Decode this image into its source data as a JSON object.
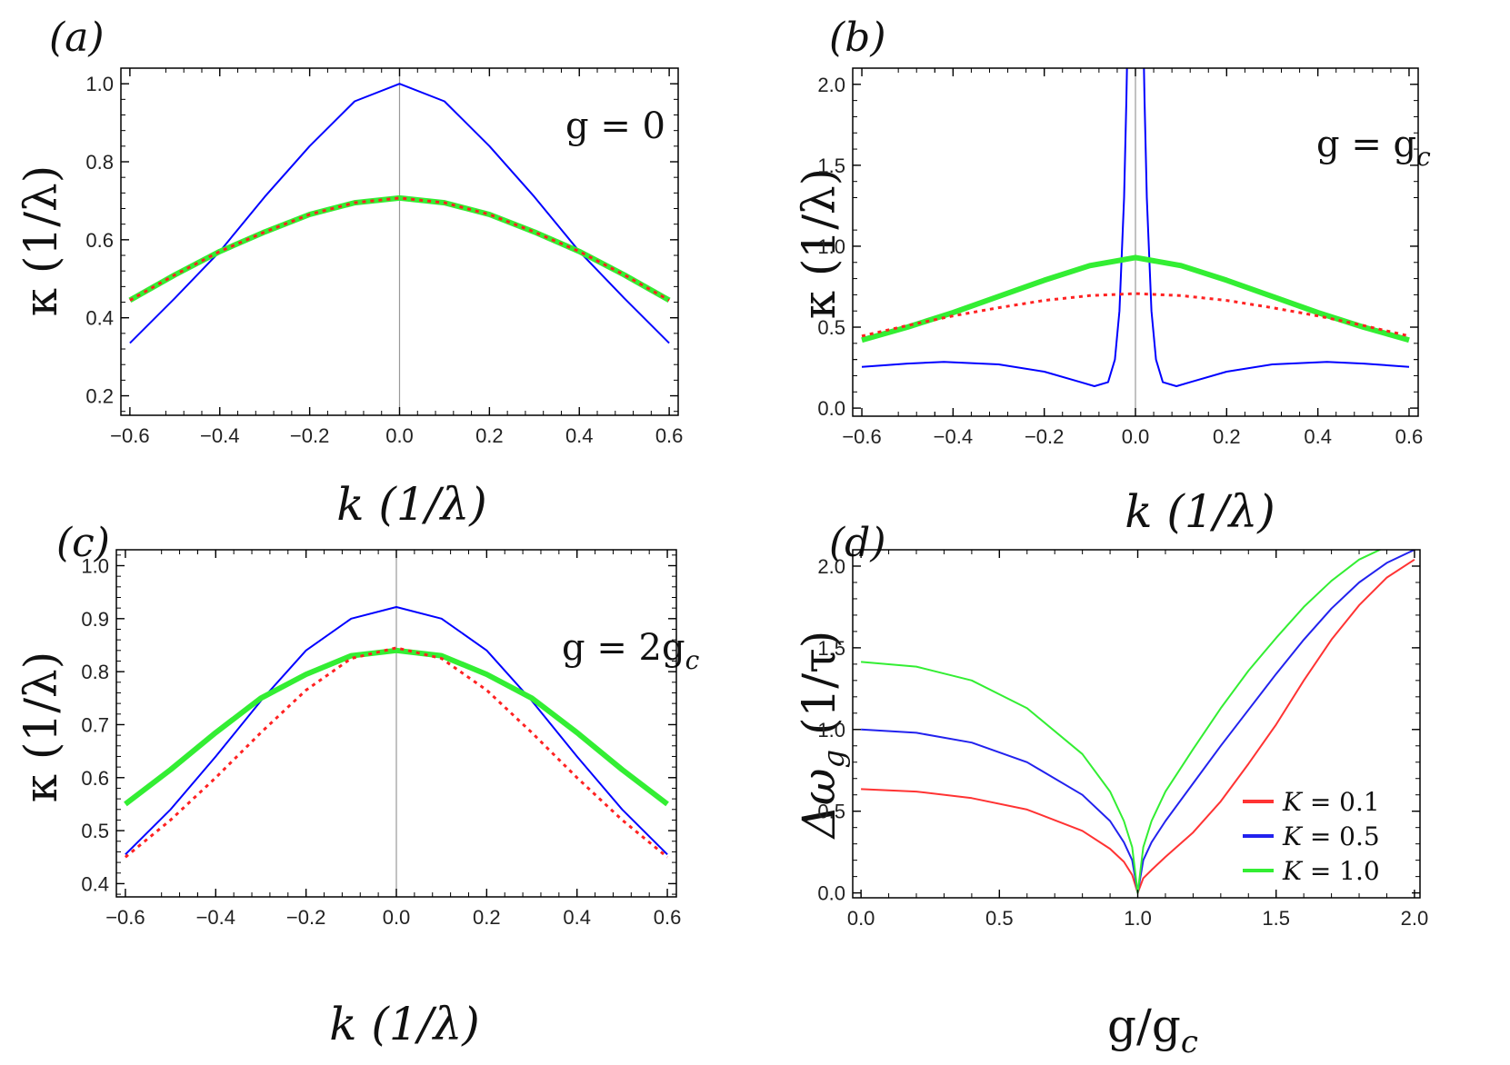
{
  "chart_data": [
    {
      "panel": "(a)",
      "type": "line",
      "annotation": "g = 0",
      "xlabel": "k (1/λ)",
      "ylabel": "κ (1/λ)",
      "xlim": [
        -0.62,
        0.62
      ],
      "ylim": [
        0.15,
        1.04
      ],
      "xticks": [
        -0.6,
        -0.4,
        -0.2,
        0.0,
        0.2,
        0.4,
        0.6
      ],
      "yticks": [
        0.2,
        0.4,
        0.6,
        0.8,
        1.0
      ],
      "xtick_labels": [
        "−0.6",
        "−0.4",
        "−0.2",
        "0.0",
        "0.2",
        "0.4",
        "0.6"
      ],
      "ytick_labels": [
        "0.2",
        "0.4",
        "0.6",
        "0.8",
        "1.0"
      ],
      "vline_x": 0,
      "series": [
        {
          "color": "#0000ff",
          "width": 2,
          "dash": "",
          "x": [
            -0.6,
            -0.5,
            -0.4,
            -0.3,
            -0.2,
            -0.1,
            0.0,
            0.1,
            0.2,
            0.3,
            0.4,
            0.5,
            0.6
          ],
          "y": [
            0.335,
            0.45,
            0.57,
            0.71,
            0.84,
            0.955,
            1.0,
            0.955,
            0.84,
            0.71,
            0.57,
            0.45,
            0.335
          ]
        },
        {
          "color": "#33ee33",
          "width": 6,
          "dash": "",
          "x": [
            -0.6,
            -0.5,
            -0.4,
            -0.3,
            -0.2,
            -0.1,
            0.0,
            0.1,
            0.2,
            0.3,
            0.4,
            0.5,
            0.6
          ],
          "y": [
            0.445,
            0.51,
            0.57,
            0.62,
            0.665,
            0.695,
            0.707,
            0.695,
            0.665,
            0.62,
            0.57,
            0.51,
            0.445
          ]
        },
        {
          "color": "#ff2222",
          "width": 3,
          "dash": "4,5",
          "x": [
            -0.6,
            -0.5,
            -0.4,
            -0.3,
            -0.2,
            -0.1,
            0.0,
            0.1,
            0.2,
            0.3,
            0.4,
            0.5,
            0.6
          ],
          "y": [
            0.445,
            0.51,
            0.57,
            0.62,
            0.665,
            0.695,
            0.707,
            0.695,
            0.665,
            0.62,
            0.57,
            0.51,
            0.445
          ]
        }
      ]
    },
    {
      "panel": "(b)",
      "type": "line",
      "annotation": "g = g",
      "annotation_sub": "c",
      "xlabel": "k (1/λ)",
      "ylabel": "κ (1/λ)",
      "xlim": [
        -0.62,
        0.62
      ],
      "ylim": [
        -0.05,
        2.1
      ],
      "xticks": [
        -0.6,
        -0.4,
        -0.2,
        0.0,
        0.2,
        0.4,
        0.6
      ],
      "yticks": [
        0.0,
        0.5,
        1.0,
        1.5,
        2.0
      ],
      "xtick_labels": [
        "−0.6",
        "−0.4",
        "−0.2",
        "0.0",
        "0.2",
        "0.4",
        "0.6"
      ],
      "ytick_labels": [
        "0.0",
        "0.5",
        "1.0",
        "1.5",
        "2.0"
      ],
      "vline_x": 0,
      "series": [
        {
          "color": "#0000ff",
          "width": 2,
          "dash": "",
          "x": [
            -0.6,
            -0.5,
            -0.42,
            -0.3,
            -0.2,
            -0.12,
            -0.09,
            -0.06,
            -0.045,
            -0.035,
            -0.025,
            -0.02,
            -0.018,
            0.018,
            0.02,
            0.025,
            0.035,
            0.045,
            0.06,
            0.09,
            0.12,
            0.2,
            0.3,
            0.42,
            0.5,
            0.6
          ],
          "y": [
            0.255,
            0.275,
            0.285,
            0.27,
            0.225,
            0.16,
            0.135,
            0.16,
            0.3,
            0.6,
            1.3,
            1.9,
            2.2,
            2.2,
            1.9,
            1.3,
            0.6,
            0.3,
            0.16,
            0.135,
            0.16,
            0.225,
            0.27,
            0.285,
            0.275,
            0.255
          ]
        },
        {
          "color": "#33ee33",
          "width": 6,
          "dash": "",
          "x": [
            -0.6,
            -0.5,
            -0.4,
            -0.3,
            -0.2,
            -0.1,
            0.0,
            0.1,
            0.2,
            0.3,
            0.4,
            0.5,
            0.6
          ],
          "y": [
            0.42,
            0.5,
            0.59,
            0.69,
            0.79,
            0.88,
            0.93,
            0.88,
            0.79,
            0.69,
            0.59,
            0.5,
            0.42
          ]
        },
        {
          "color": "#ff2222",
          "width": 3,
          "dash": "4,5",
          "x": [
            -0.6,
            -0.5,
            -0.4,
            -0.3,
            -0.2,
            -0.1,
            0.0,
            0.1,
            0.2,
            0.3,
            0.4,
            0.5,
            0.6
          ],
          "y": [
            0.445,
            0.51,
            0.57,
            0.62,
            0.665,
            0.695,
            0.707,
            0.695,
            0.665,
            0.62,
            0.57,
            0.51,
            0.445
          ]
        }
      ]
    },
    {
      "panel": "(c)",
      "type": "line",
      "annotation": "g = 2g",
      "annotation_sub": "c",
      "xlabel": "k (1/λ)",
      "ylabel": "κ (1/λ)",
      "xlim": [
        -0.62,
        0.62
      ],
      "ylim": [
        0.375,
        1.03
      ],
      "xticks": [
        -0.6,
        -0.4,
        -0.2,
        0.0,
        0.2,
        0.4,
        0.6
      ],
      "yticks": [
        0.4,
        0.5,
        0.6,
        0.7,
        0.8,
        0.9,
        1.0
      ],
      "xtick_labels": [
        "−0.6",
        "−0.4",
        "−0.2",
        "0.0",
        "0.2",
        "0.4",
        "0.6"
      ],
      "ytick_labels": [
        "0.4",
        "0.5",
        "0.6",
        "0.7",
        "0.8",
        "0.9",
        "1.0"
      ],
      "vline_x": 0,
      "series": [
        {
          "color": "#0000ff",
          "width": 2,
          "dash": "",
          "x": [
            -0.6,
            -0.5,
            -0.4,
            -0.3,
            -0.2,
            -0.1,
            0.0,
            0.1,
            0.2,
            0.3,
            0.4,
            0.5,
            0.6
          ],
          "y": [
            0.455,
            0.54,
            0.64,
            0.745,
            0.84,
            0.9,
            0.922,
            0.9,
            0.84,
            0.745,
            0.64,
            0.54,
            0.455
          ]
        },
        {
          "color": "#33ee33",
          "width": 6,
          "dash": "",
          "x": [
            -0.6,
            -0.5,
            -0.4,
            -0.3,
            -0.2,
            -0.1,
            0.0,
            0.1,
            0.2,
            0.3,
            0.4,
            0.5,
            0.6
          ],
          "y": [
            0.55,
            0.615,
            0.685,
            0.75,
            0.795,
            0.83,
            0.84,
            0.83,
            0.795,
            0.75,
            0.685,
            0.615,
            0.55
          ]
        },
        {
          "color": "#ff2222",
          "width": 3,
          "dash": "4,5",
          "x": [
            -0.6,
            -0.5,
            -0.4,
            -0.3,
            -0.2,
            -0.1,
            0.0,
            0.1,
            0.2,
            0.3,
            0.4,
            0.5,
            0.6
          ],
          "y": [
            0.45,
            0.52,
            0.6,
            0.685,
            0.765,
            0.825,
            0.845,
            0.825,
            0.765,
            0.685,
            0.6,
            0.52,
            0.45
          ]
        }
      ]
    },
    {
      "panel": "(d)",
      "type": "line",
      "xlabel": "g/g",
      "xlabel_sub": "c",
      "ylabel": "Δω",
      "ylabel_sub": "g",
      "ylabel_unit": " (1/τ)",
      "xlim": [
        -0.03,
        2.02
      ],
      "ylim": [
        -0.03,
        2.1
      ],
      "xticks": [
        0.0,
        0.5,
        1.0,
        1.5,
        2.0
      ],
      "yticks": [
        0.0,
        0.5,
        1.0,
        1.5,
        2.0
      ],
      "xtick_labels": [
        "0.0",
        "0.5",
        "1.0",
        "1.5",
        "2.0"
      ],
      "ytick_labels": [
        "0.0",
        "0.5",
        "1.0",
        "1.5",
        "2.0"
      ],
      "legend": "bottom-right",
      "series": [
        {
          "name": "K = 0.1",
          "color": "#ff3333",
          "width": 2,
          "dash": "",
          "x": [
            0.0,
            0.2,
            0.4,
            0.6,
            0.8,
            0.9,
            0.95,
            0.98,
            1.0,
            1.02,
            1.05,
            1.1,
            1.2,
            1.3,
            1.4,
            1.5,
            1.6,
            1.7,
            1.8,
            1.9,
            2.0
          ],
          "y": [
            0.635,
            0.62,
            0.58,
            0.51,
            0.38,
            0.27,
            0.19,
            0.11,
            0.0,
            0.09,
            0.14,
            0.22,
            0.37,
            0.56,
            0.79,
            1.03,
            1.3,
            1.55,
            1.76,
            1.93,
            2.04
          ]
        },
        {
          "name": "K = 0.5",
          "color": "#2222ee",
          "width": 2,
          "dash": "",
          "x": [
            0.0,
            0.2,
            0.4,
            0.6,
            0.8,
            0.9,
            0.95,
            0.98,
            1.0,
            1.02,
            1.05,
            1.1,
            1.2,
            1.3,
            1.4,
            1.5,
            1.6,
            1.7,
            1.8,
            1.9,
            2.0
          ],
          "y": [
            1.0,
            0.98,
            0.92,
            0.8,
            0.6,
            0.44,
            0.31,
            0.2,
            0.0,
            0.2,
            0.31,
            0.44,
            0.67,
            0.9,
            1.12,
            1.34,
            1.55,
            1.74,
            1.9,
            2.02,
            2.1
          ]
        },
        {
          "name": "K = 1.0",
          "color": "#33ee33",
          "width": 2,
          "dash": "",
          "x": [
            0.0,
            0.2,
            0.4,
            0.6,
            0.8,
            0.9,
            0.95,
            0.98,
            1.0,
            1.02,
            1.05,
            1.1,
            1.2,
            1.3,
            1.4,
            1.5,
            1.6,
            1.7,
            1.8,
            1.9
          ],
          "y": [
            1.414,
            1.385,
            1.3,
            1.13,
            0.85,
            0.62,
            0.44,
            0.28,
            0.0,
            0.28,
            0.44,
            0.62,
            0.88,
            1.13,
            1.36,
            1.56,
            1.75,
            1.91,
            2.04,
            2.12
          ]
        }
      ]
    }
  ]
}
